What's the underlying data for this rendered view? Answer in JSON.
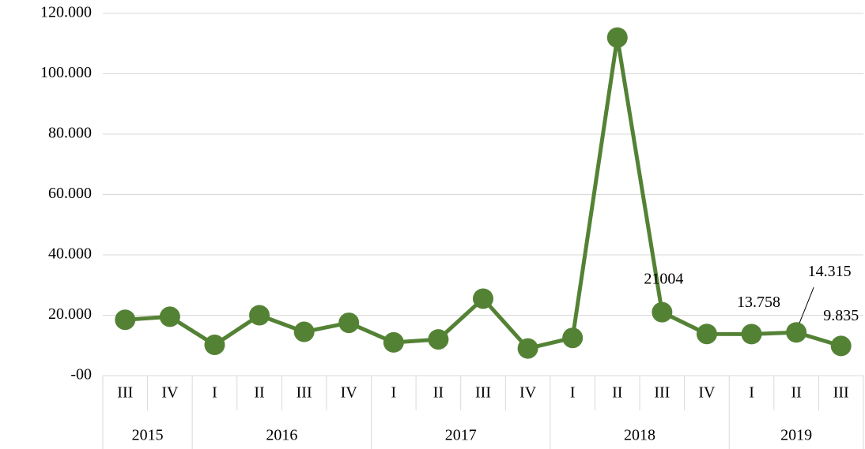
{
  "chart_data": {
    "type": "line",
    "groups": [
      {
        "label": "2015",
        "categories": [
          "III",
          "IV"
        ]
      },
      {
        "label": "2016",
        "categories": [
          "I",
          "II",
          "III",
          "IV"
        ]
      },
      {
        "label": "2017",
        "categories": [
          "I",
          "II",
          "III",
          "IV"
        ]
      },
      {
        "label": "2018",
        "categories": [
          "I",
          "II",
          "III",
          "IV"
        ]
      },
      {
        "label": "2019",
        "categories": [
          "I",
          "II",
          "III"
        ]
      }
    ],
    "values": [
      18500,
      19500,
      10200,
      20000,
      14500,
      17500,
      11000,
      12000,
      25500,
      9000,
      12500,
      112000,
      21004,
      13800,
      13758,
      14315,
      9835
    ],
    "value_labels": [
      null,
      null,
      null,
      null,
      null,
      null,
      null,
      null,
      null,
      null,
      null,
      null,
      "21004",
      null,
      "13.758",
      "14.315",
      "9.835"
    ],
    "color": "#548235",
    "ylim": [
      0,
      120000
    ],
    "yticks": [
      {
        "value": 0,
        "label": "-00"
      },
      {
        "value": 20000,
        "label": "20.000"
      },
      {
        "value": 40000,
        "label": "40.000"
      },
      {
        "value": 60000,
        "label": "60.000"
      },
      {
        "value": 80000,
        "label": "80.000"
      },
      {
        "value": 100000,
        "label": "100.000"
      },
      {
        "value": 120000,
        "label": "120.000"
      }
    ],
    "grid": true
  }
}
